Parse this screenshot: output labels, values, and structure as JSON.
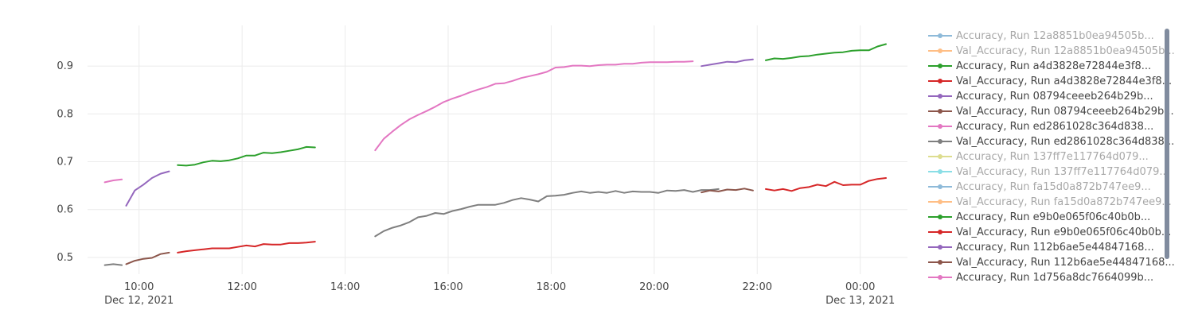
{
  "chart_data": {
    "type": "line",
    "title": "",
    "xlabel": "",
    "ylabel": "",
    "x_range": [
      "2021-12-12T09:00",
      "2021-12-13T00:55"
    ],
    "ylim": [
      0.465,
      0.985
    ],
    "grid": true,
    "legend_position": "right",
    "x_ticks": [
      {
        "at": "2021-12-12T10:00",
        "label": "10:00",
        "sublabel": "Dec 12, 2021"
      },
      {
        "at": "2021-12-12T12:00",
        "label": "12:00",
        "sublabel": ""
      },
      {
        "at": "2021-12-12T14:00",
        "label": "14:00",
        "sublabel": ""
      },
      {
        "at": "2021-12-12T16:00",
        "label": "16:00",
        "sublabel": ""
      },
      {
        "at": "2021-12-12T18:00",
        "label": "18:00",
        "sublabel": ""
      },
      {
        "at": "2021-12-12T20:00",
        "label": "20:00",
        "sublabel": ""
      },
      {
        "at": "2021-12-12T22:00",
        "label": "22:00",
        "sublabel": ""
      },
      {
        "at": "2021-12-13T00:00",
        "label": "00:00",
        "sublabel": "Dec 13, 2021"
      }
    ],
    "y_ticks": [
      {
        "value": 0.5,
        "label": "0.5"
      },
      {
        "value": 0.6,
        "label": "0.6"
      },
      {
        "value": 0.7,
        "label": "0.7"
      },
      {
        "value": 0.8,
        "label": "0.8"
      },
      {
        "value": 0.9,
        "label": "0.9"
      }
    ],
    "series": [
      {
        "name": "Accuracy, Run 12a8851b0ea94505b...",
        "color": "#1f77b4",
        "visible": false,
        "points": []
      },
      {
        "name": "Val_Accuracy, Run 12a8851b0ea94505b...",
        "color": "#ff7f0e",
        "visible": false,
        "points": []
      },
      {
        "name": "Accuracy, Run a4d3828e72844e3f8...",
        "color": "#2ca02c",
        "visible": true,
        "points": [
          [
            "2021-12-12T10:45",
            0.693
          ],
          [
            "2021-12-12T10:55",
            0.692
          ],
          [
            "2021-12-12T11:05",
            0.694
          ],
          [
            "2021-12-12T11:15",
            0.699
          ],
          [
            "2021-12-12T11:25",
            0.702
          ],
          [
            "2021-12-12T11:35",
            0.701
          ],
          [
            "2021-12-12T11:45",
            0.703
          ],
          [
            "2021-12-12T11:55",
            0.707
          ],
          [
            "2021-12-12T12:05",
            0.713
          ],
          [
            "2021-12-12T12:15",
            0.713
          ],
          [
            "2021-12-12T12:25",
            0.719
          ],
          [
            "2021-12-12T12:35",
            0.718
          ],
          [
            "2021-12-12T12:45",
            0.72
          ],
          [
            "2021-12-12T12:55",
            0.723
          ],
          [
            "2021-12-12T13:05",
            0.726
          ],
          [
            "2021-12-12T13:15",
            0.731
          ],
          [
            "2021-12-12T13:25",
            0.73
          ]
        ]
      },
      {
        "name": "Val_Accuracy, Run a4d3828e72844e3f8...",
        "color": "#d62728",
        "visible": true,
        "points": [
          [
            "2021-12-12T10:45",
            0.51
          ],
          [
            "2021-12-12T10:55",
            0.513
          ],
          [
            "2021-12-12T11:05",
            0.515
          ],
          [
            "2021-12-12T11:15",
            0.517
          ],
          [
            "2021-12-12T11:25",
            0.519
          ],
          [
            "2021-12-12T11:35",
            0.519
          ],
          [
            "2021-12-12T11:45",
            0.519
          ],
          [
            "2021-12-12T11:55",
            0.522
          ],
          [
            "2021-12-12T12:05",
            0.525
          ],
          [
            "2021-12-12T12:15",
            0.523
          ],
          [
            "2021-12-12T12:25",
            0.528
          ],
          [
            "2021-12-12T12:35",
            0.527
          ],
          [
            "2021-12-12T12:45",
            0.527
          ],
          [
            "2021-12-12T12:55",
            0.53
          ],
          [
            "2021-12-12T13:05",
            0.53
          ],
          [
            "2021-12-12T13:15",
            0.531
          ],
          [
            "2021-12-12T13:25",
            0.533
          ]
        ]
      },
      {
        "name": "Accuracy, Run 08794ceeeb264b29b...",
        "color": "#9467bd",
        "visible": true,
        "points": [
          [
            "2021-12-12T09:45",
            0.608
          ],
          [
            "2021-12-12T09:55",
            0.64
          ],
          [
            "2021-12-12T10:05",
            0.652
          ],
          [
            "2021-12-12T10:15",
            0.666
          ],
          [
            "2021-12-12T10:25",
            0.675
          ],
          [
            "2021-12-12T10:35",
            0.68
          ]
        ]
      },
      {
        "name": "Val_Accuracy, Run 08794ceeeb264b29b...",
        "color": "#8c564b",
        "visible": true,
        "points": [
          [
            "2021-12-12T09:45",
            0.486
          ],
          [
            "2021-12-12T09:55",
            0.493
          ],
          [
            "2021-12-12T10:05",
            0.497
          ],
          [
            "2021-12-12T10:15",
            0.499
          ],
          [
            "2021-12-12T10:25",
            0.507
          ],
          [
            "2021-12-12T10:35",
            0.51
          ]
        ]
      },
      {
        "name": "Accuracy, Run ed2861028c364d838...",
        "color": "#e377c2",
        "visible": true,
        "points": [
          [
            "2021-12-12T14:35",
            0.724
          ],
          [
            "2021-12-12T14:45",
            0.748
          ],
          [
            "2021-12-12T14:55",
            0.763
          ],
          [
            "2021-12-12T15:05",
            0.777
          ],
          [
            "2021-12-12T15:15",
            0.789
          ],
          [
            "2021-12-12T15:25",
            0.798
          ],
          [
            "2021-12-12T15:35",
            0.806
          ],
          [
            "2021-12-12T15:45",
            0.815
          ],
          [
            "2021-12-12T15:55",
            0.825
          ],
          [
            "2021-12-12T16:05",
            0.832
          ],
          [
            "2021-12-12T16:15",
            0.838
          ],
          [
            "2021-12-12T16:25",
            0.845
          ],
          [
            "2021-12-12T16:35",
            0.851
          ],
          [
            "2021-12-12T16:45",
            0.856
          ],
          [
            "2021-12-12T16:55",
            0.863
          ],
          [
            "2021-12-12T17:05",
            0.864
          ],
          [
            "2021-12-12T17:15",
            0.869
          ],
          [
            "2021-12-12T17:25",
            0.875
          ],
          [
            "2021-12-12T17:35",
            0.879
          ],
          [
            "2021-12-12T17:45",
            0.883
          ],
          [
            "2021-12-12T17:55",
            0.888
          ],
          [
            "2021-12-12T18:05",
            0.897
          ],
          [
            "2021-12-12T18:15",
            0.898
          ],
          [
            "2021-12-12T18:25",
            0.901
          ],
          [
            "2021-12-12T18:35",
            0.901
          ],
          [
            "2021-12-12T18:45",
            0.9
          ],
          [
            "2021-12-12T18:55",
            0.902
          ],
          [
            "2021-12-12T19:05",
            0.903
          ],
          [
            "2021-12-12T19:15",
            0.903
          ],
          [
            "2021-12-12T19:25",
            0.905
          ],
          [
            "2021-12-12T19:35",
            0.905
          ],
          [
            "2021-12-12T19:45",
            0.907
          ],
          [
            "2021-12-12T19:55",
            0.908
          ],
          [
            "2021-12-12T20:05",
            0.908
          ],
          [
            "2021-12-12T20:15",
            0.908
          ],
          [
            "2021-12-12T20:25",
            0.909
          ],
          [
            "2021-12-12T20:35",
            0.909
          ],
          [
            "2021-12-12T20:45",
            0.91
          ]
        ]
      },
      {
        "name": "Val_Accuracy, Run ed2861028c364d838...",
        "color": "#7f7f7f",
        "visible": true,
        "points": [
          [
            "2021-12-12T14:35",
            0.544
          ],
          [
            "2021-12-12T14:45",
            0.555
          ],
          [
            "2021-12-12T14:55",
            0.562
          ],
          [
            "2021-12-12T15:05",
            0.567
          ],
          [
            "2021-12-12T15:15",
            0.574
          ],
          [
            "2021-12-12T15:25",
            0.584
          ],
          [
            "2021-12-12T15:35",
            0.587
          ],
          [
            "2021-12-12T15:45",
            0.593
          ],
          [
            "2021-12-12T15:55",
            0.591
          ],
          [
            "2021-12-12T16:05",
            0.597
          ],
          [
            "2021-12-12T16:15",
            0.601
          ],
          [
            "2021-12-12T16:25",
            0.606
          ],
          [
            "2021-12-12T16:35",
            0.61
          ],
          [
            "2021-12-12T16:45",
            0.61
          ],
          [
            "2021-12-12T16:55",
            0.61
          ],
          [
            "2021-12-12T17:05",
            0.614
          ],
          [
            "2021-12-12T17:15",
            0.62
          ],
          [
            "2021-12-12T17:25",
            0.624
          ],
          [
            "2021-12-12T17:35",
            0.621
          ],
          [
            "2021-12-12T17:45",
            0.617
          ],
          [
            "2021-12-12T17:55",
            0.628
          ],
          [
            "2021-12-12T18:05",
            0.629
          ],
          [
            "2021-12-12T18:15",
            0.631
          ],
          [
            "2021-12-12T18:25",
            0.635
          ],
          [
            "2021-12-12T18:35",
            0.638
          ],
          [
            "2021-12-12T18:45",
            0.635
          ],
          [
            "2021-12-12T18:55",
            0.637
          ],
          [
            "2021-12-12T19:05",
            0.635
          ],
          [
            "2021-12-12T19:15",
            0.639
          ],
          [
            "2021-12-12T19:25",
            0.635
          ],
          [
            "2021-12-12T19:35",
            0.638
          ],
          [
            "2021-12-12T19:45",
            0.637
          ],
          [
            "2021-12-12T19:55",
            0.637
          ],
          [
            "2021-12-12T20:05",
            0.635
          ],
          [
            "2021-12-12T20:15",
            0.64
          ],
          [
            "2021-12-12T20:25",
            0.639
          ],
          [
            "2021-12-12T20:35",
            0.641
          ],
          [
            "2021-12-12T20:45",
            0.637
          ],
          [
            "2021-12-12T20:55",
            0.641
          ],
          [
            "2021-12-12T21:05",
            0.641
          ],
          [
            "2021-12-12T21:15",
            0.643
          ]
        ]
      },
      {
        "name": "Accuracy, Run 137ff7e117764d079...",
        "color": "#bcbd22",
        "visible": false,
        "points": []
      },
      {
        "name": "Val_Accuracy, Run 137ff7e117764d079...",
        "color": "#17becf",
        "visible": false,
        "points": []
      },
      {
        "name": "Accuracy, Run fa15d0a872b747ee9...",
        "color": "#1f77b4",
        "visible": false,
        "points": []
      },
      {
        "name": "Val_Accuracy, Run fa15d0a872b747ee9...",
        "color": "#ff7f0e",
        "visible": false,
        "points": []
      },
      {
        "name": "Accuracy, Run e9b0e065f06c40b0b...",
        "color": "#2ca02c",
        "visible": true,
        "points": [
          [
            "2021-12-12T22:10",
            0.912
          ],
          [
            "2021-12-12T22:20",
            0.916
          ],
          [
            "2021-12-12T22:30",
            0.915
          ],
          [
            "2021-12-12T22:40",
            0.917
          ],
          [
            "2021-12-12T22:50",
            0.92
          ],
          [
            "2021-12-12T23:00",
            0.921
          ],
          [
            "2021-12-12T23:10",
            0.924
          ],
          [
            "2021-12-12T23:20",
            0.926
          ],
          [
            "2021-12-12T23:30",
            0.928
          ],
          [
            "2021-12-12T23:40",
            0.929
          ],
          [
            "2021-12-12T23:50",
            0.932
          ],
          [
            "2021-12-13T00:00",
            0.933
          ],
          [
            "2021-12-13T00:10",
            0.933
          ],
          [
            "2021-12-13T00:20",
            0.941
          ],
          [
            "2021-12-13T00:30",
            0.946
          ]
        ]
      },
      {
        "name": "Val_Accuracy, Run e9b0e065f06c40b0b...",
        "color": "#d62728",
        "visible": true,
        "points": [
          [
            "2021-12-12T22:10",
            0.643
          ],
          [
            "2021-12-12T22:20",
            0.64
          ],
          [
            "2021-12-12T22:30",
            0.643
          ],
          [
            "2021-12-12T22:40",
            0.639
          ],
          [
            "2021-12-12T22:50",
            0.645
          ],
          [
            "2021-12-12T23:00",
            0.647
          ],
          [
            "2021-12-12T23:10",
            0.652
          ],
          [
            "2021-12-12T23:20",
            0.649
          ],
          [
            "2021-12-12T23:30",
            0.658
          ],
          [
            "2021-12-12T23:40",
            0.651
          ],
          [
            "2021-12-12T23:50",
            0.652
          ],
          [
            "2021-12-13T00:00",
            0.652
          ],
          [
            "2021-12-13T00:10",
            0.66
          ],
          [
            "2021-12-13T00:20",
            0.664
          ],
          [
            "2021-12-13T00:30",
            0.666
          ]
        ]
      },
      {
        "name": "Accuracy, Run 112b6ae5e44847168...",
        "color": "#9467bd",
        "visible": true,
        "points": [
          [
            "2021-12-12T20:55",
            0.9
          ],
          [
            "2021-12-12T21:05",
            0.903
          ],
          [
            "2021-12-12T21:15",
            0.906
          ],
          [
            "2021-12-12T21:25",
            0.909
          ],
          [
            "2021-12-12T21:35",
            0.908
          ],
          [
            "2021-12-12T21:45",
            0.912
          ],
          [
            "2021-12-12T21:55",
            0.914
          ]
        ]
      },
      {
        "name": "Val_Accuracy, Run 112b6ae5e44847168...",
        "color": "#8c564b",
        "visible": true,
        "points": [
          [
            "2021-12-12T20:55",
            0.636
          ],
          [
            "2021-12-12T21:05",
            0.64
          ],
          [
            "2021-12-12T21:15",
            0.638
          ],
          [
            "2021-12-12T21:25",
            0.642
          ],
          [
            "2021-12-12T21:35",
            0.641
          ],
          [
            "2021-12-12T21:45",
            0.644
          ],
          [
            "2021-12-12T21:55",
            0.64
          ]
        ]
      },
      {
        "name": "Accuracy, Run 1d756a8dc7664099b...",
        "color": "#e377c2",
        "visible": true,
        "points": [
          [
            "2021-12-12T09:20",
            0.657
          ],
          [
            "2021-12-12T09:30",
            0.661
          ],
          [
            "2021-12-12T09:40",
            0.663
          ]
        ]
      },
      {
        "name": "",
        "color": "#7f7f7f",
        "visible": true,
        "points": [
          [
            "2021-12-12T09:20",
            0.484
          ],
          [
            "2021-12-12T09:30",
            0.486
          ],
          [
            "2021-12-12T09:40",
            0.484
          ]
        ]
      }
    ]
  }
}
